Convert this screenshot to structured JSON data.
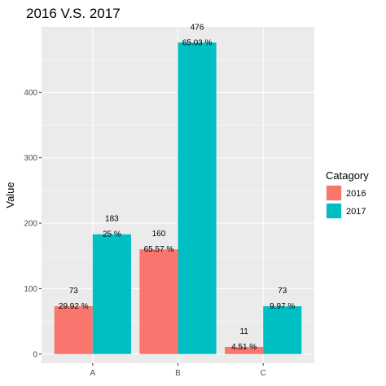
{
  "chart_data": {
    "type": "bar",
    "title": "2016 V.S. 2017",
    "xlabel": "",
    "ylabel": "Value",
    "categories": [
      "A",
      "B",
      "C"
    ],
    "series": [
      {
        "name": "2016",
        "color": "#F8766D",
        "values": [
          73,
          160,
          11
        ],
        "pct_labels": [
          "29.92 %",
          "65.57 %",
          "4.51 %"
        ]
      },
      {
        "name": "2017",
        "color": "#00BFC4",
        "values": [
          183,
          476,
          73
        ],
        "pct_labels": [
          "25 %",
          "65.03 %",
          "9.97 %"
        ]
      }
    ],
    "ylim": [
      -14,
      500
    ],
    "yticks": [
      0,
      100,
      200,
      300,
      400
    ],
    "grid": true,
    "legend": {
      "title": "Catagory",
      "position": "right"
    }
  }
}
